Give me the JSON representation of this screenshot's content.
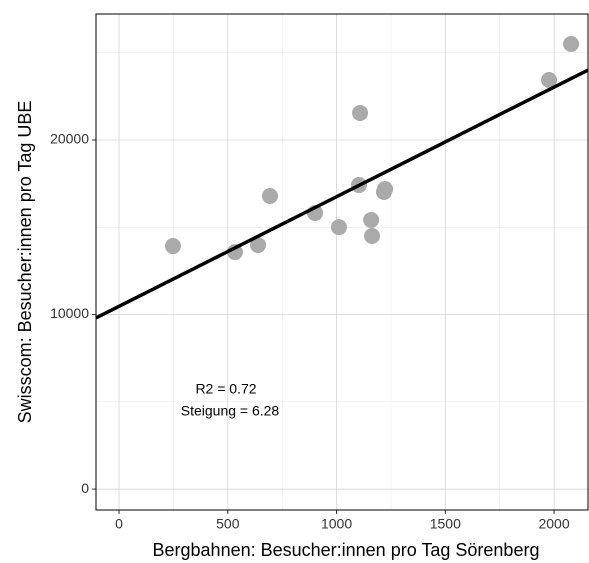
{
  "chart_data": {
    "type": "scatter",
    "x_label": "Bergbahnen: Besucher:innen pro Tag Sörenberg",
    "y_label": "Swisscom: Besucher:innen pro Tag UBE",
    "annotations": [
      "R2 = 0.72",
      "Steigung = 6.28"
    ],
    "x": [
      248,
      533,
      639,
      694,
      901,
      1011,
      1108,
      1103,
      1159,
      1163,
      1218,
      1223,
      1977,
      2078
    ],
    "series": [
      {
        "color": "#aaaaaa",
        "values": [
          13925,
          13580,
          13980,
          16790,
          15820,
          15010,
          21550,
          17420,
          15420,
          14500,
          17020,
          17190,
          23440,
          25500
        ]
      }
    ],
    "fit": {
      "color": "#000000",
      "intercept": 10470,
      "slope": 6.28
    },
    "xlim": [
      -106,
      2156
    ],
    "ylim": [
      -1200,
      27220
    ],
    "xticks": [
      0,
      500,
      1000,
      1500,
      2000
    ],
    "yticks": [
      0,
      10000,
      20000
    ],
    "xminor": [
      250,
      750,
      1250,
      1750
    ],
    "yminor": [
      5000,
      15000,
      25000
    ],
    "grid": true
  }
}
